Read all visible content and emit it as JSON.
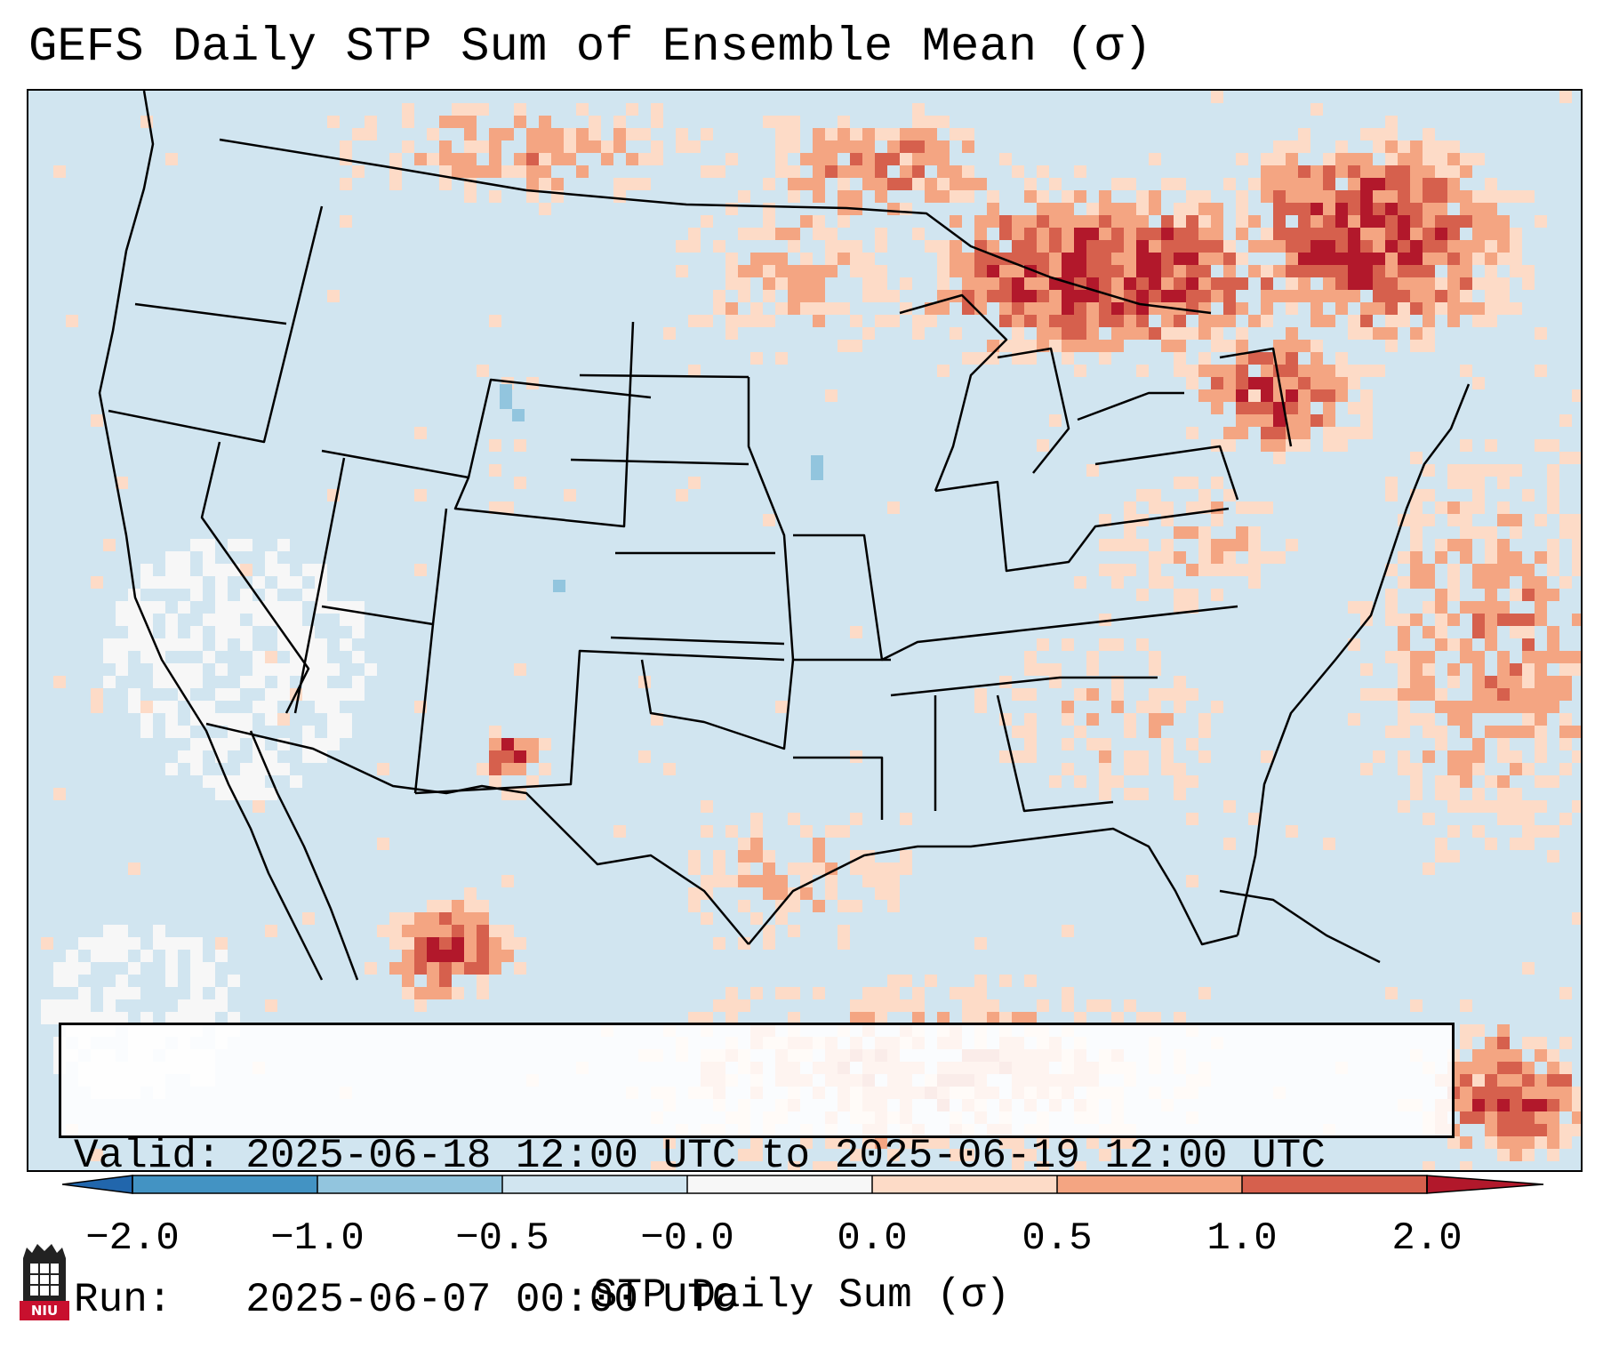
{
  "title": "GEFS Daily STP Sum of Ensemble Mean (σ)",
  "info": {
    "valid_label": "Valid:",
    "valid_value": "2025-06-18 12:00 UTC to 2025-06-19 12:00 UTC",
    "run_label": "Run:",
    "run_value": "2025-06-07 00:00 UTC"
  },
  "colorbar": {
    "label": "STP Daily Sum (σ)",
    "ticks": [
      "−2.0",
      "−1.0",
      "−0.5",
      "−0.0",
      "0.0",
      "0.5",
      "1.0",
      "2.0"
    ],
    "colors": [
      "#2166ac",
      "#4393c3",
      "#92c5de",
      "#d1e5f0",
      "#f7f7f7",
      "#fddbc7",
      "#f4a582",
      "#d6604d",
      "#b2182b"
    ],
    "extend": "both"
  },
  "logo": {
    "text": "NIU",
    "name": "niu-logo"
  },
  "colors": {
    "ocean_bg": "#d1e5f0",
    "pale": "#fddbc7",
    "mid": "#f4a582",
    "dark": "#d6604d",
    "darkest": "#b2182b",
    "white": "#f7f7f7",
    "light_blue": "#92c5de",
    "border": "#000000"
  }
}
